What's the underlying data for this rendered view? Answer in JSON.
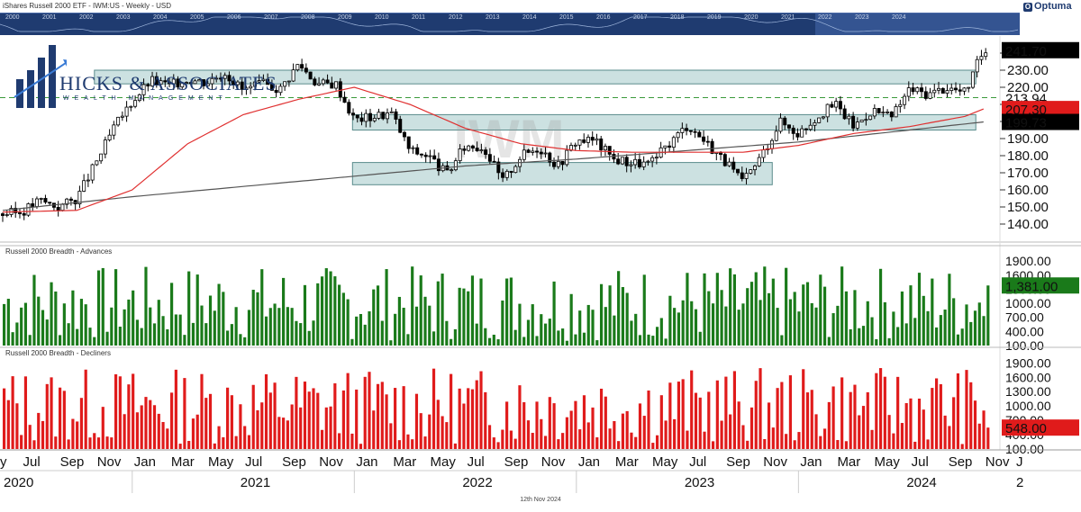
{
  "header": {
    "title": "iShares Russell 2000 ETF - IWM:US - Weekly - USD",
    "brand": "Optuma"
  },
  "navigator": {
    "years": [
      "2000",
      "2001",
      "2002",
      "2003",
      "2004",
      "2005",
      "2006",
      "2007",
      "2008",
      "2009",
      "2010",
      "2011",
      "2012",
      "2013",
      "2014",
      "2015",
      "2016",
      "2017",
      "2018",
      "2019",
      "2020",
      "2021",
      "2022",
      "2023",
      "2024"
    ]
  },
  "logo": {
    "name": "HICKS & ASSOCIATES",
    "tagline": "WEALTH MANAGEMENT"
  },
  "watermark": "IWM",
  "footer": {
    "date": "12th Nov 2024"
  },
  "colors": {
    "up": "#ffffff",
    "down": "#000000",
    "ma_fast": "#e03030",
    "ma_slow": "#555555",
    "zone": "#8fbcbc",
    "advances": "#1a7a1a",
    "decliners": "#e01b1b",
    "nav": "#1f3b70"
  },
  "chart_data": [
    {
      "type": "candlestick",
      "title": "iShares Russell 2000 ETF - IWM:US - Weekly - USD",
      "ylim": [
        130,
        250
      ],
      "yticks": [
        "140.00",
        "150.00",
        "160.00",
        "170.00",
        "180.00",
        "190.00",
        "200.00",
        "210.00",
        "220.00",
        "230.00",
        "240.00"
      ],
      "price_labels": [
        {
          "value": 241.7,
          "label": "241.70",
          "style": "last"
        },
        {
          "value": 213.94,
          "label": "213.94",
          "style": "level"
        },
        {
          "value": 207.3,
          "label": "207.30",
          "style": "ma_fast"
        },
        {
          "value": 199.73,
          "label": "199.73",
          "style": "ma_slow"
        }
      ],
      "dashed_level": 213.94,
      "zones": [
        {
          "from": "2021-01",
          "to": "2024-10",
          "low": 222,
          "high": 230
        },
        {
          "from": "2022-01",
          "to": "2024-10",
          "low": 195,
          "high": 204
        },
        {
          "from": "2022-01",
          "to": "2023-11",
          "low": 163,
          "high": 176
        }
      ],
      "monthly_close": [
        {
          "x": "2020-06",
          "v": 146
        },
        {
          "x": "2020-07",
          "v": 147
        },
        {
          "x": "2020-08",
          "v": 154
        },
        {
          "x": "2020-09",
          "v": 150
        },
        {
          "x": "2020-10",
          "v": 155
        },
        {
          "x": "2020-11",
          "v": 175
        },
        {
          "x": "2020-12",
          "v": 196
        },
        {
          "x": "2021-01",
          "v": 212
        },
        {
          "x": "2021-02",
          "v": 224
        },
        {
          "x": "2021-03",
          "v": 221
        },
        {
          "x": "2021-04",
          "v": 225
        },
        {
          "x": "2021-05",
          "v": 223
        },
        {
          "x": "2021-06",
          "v": 229
        },
        {
          "x": "2021-07",
          "v": 218
        },
        {
          "x": "2021-08",
          "v": 222
        },
        {
          "x": "2021-09",
          "v": 219
        },
        {
          "x": "2021-10",
          "v": 234
        },
        {
          "x": "2021-11",
          "v": 222
        },
        {
          "x": "2021-12",
          "v": 222
        },
        {
          "x": "2022-01",
          "v": 201
        },
        {
          "x": "2022-02",
          "v": 203
        },
        {
          "x": "2022-03",
          "v": 205
        },
        {
          "x": "2022-04",
          "v": 183
        },
        {
          "x": "2022-05",
          "v": 180
        },
        {
          "x": "2022-06",
          "v": 169
        },
        {
          "x": "2022-07",
          "v": 186
        },
        {
          "x": "2022-08",
          "v": 185
        },
        {
          "x": "2022-09",
          "v": 165
        },
        {
          "x": "2022-10",
          "v": 180
        },
        {
          "x": "2022-11",
          "v": 185
        },
        {
          "x": "2022-12",
          "v": 174
        },
        {
          "x": "2023-01",
          "v": 189
        },
        {
          "x": "2023-02",
          "v": 189
        },
        {
          "x": "2023-03",
          "v": 178
        },
        {
          "x": "2023-04",
          "v": 176
        },
        {
          "x": "2023-05",
          "v": 175
        },
        {
          "x": "2023-06",
          "v": 187
        },
        {
          "x": "2023-07",
          "v": 198
        },
        {
          "x": "2023-08",
          "v": 188
        },
        {
          "x": "2023-09",
          "v": 177
        },
        {
          "x": "2023-10",
          "v": 164
        },
        {
          "x": "2023-11",
          "v": 180
        },
        {
          "x": "2023-12",
          "v": 200
        },
        {
          "x": "2024-01",
          "v": 193
        },
        {
          "x": "2024-02",
          "v": 203
        },
        {
          "x": "2024-03",
          "v": 210
        },
        {
          "x": "2024-04",
          "v": 197
        },
        {
          "x": "2024-05",
          "v": 207
        },
        {
          "x": "2024-06",
          "v": 202
        },
        {
          "x": "2024-07",
          "v": 219
        },
        {
          "x": "2024-08",
          "v": 216
        },
        {
          "x": "2024-09",
          "v": 220
        },
        {
          "x": "2024-10",
          "v": 217
        },
        {
          "x": "2024-11",
          "v": 241.7
        }
      ],
      "ma_fast": [
        {
          "x": "2020-06",
          "v": 147
        },
        {
          "x": "2020-10",
          "v": 148
        },
        {
          "x": "2021-01",
          "v": 160
        },
        {
          "x": "2021-04",
          "v": 187
        },
        {
          "x": "2021-07",
          "v": 204
        },
        {
          "x": "2021-10",
          "v": 213
        },
        {
          "x": "2022-01",
          "v": 220
        },
        {
          "x": "2022-04",
          "v": 210
        },
        {
          "x": "2022-07",
          "v": 196
        },
        {
          "x": "2022-10",
          "v": 187
        },
        {
          "x": "2023-01",
          "v": 183
        },
        {
          "x": "2023-04",
          "v": 182
        },
        {
          "x": "2023-07",
          "v": 182
        },
        {
          "x": "2023-10",
          "v": 182
        },
        {
          "x": "2024-01",
          "v": 186
        },
        {
          "x": "2024-04",
          "v": 193
        },
        {
          "x": "2024-07",
          "v": 197
        },
        {
          "x": "2024-10",
          "v": 203
        },
        {
          "x": "2024-11",
          "v": 207.3
        }
      ],
      "ma_slow": [
        {
          "x": "2020-06",
          "v": 148
        },
        {
          "x": "2021-01",
          "v": 156
        },
        {
          "x": "2021-07",
          "v": 162
        },
        {
          "x": "2022-01",
          "v": 168
        },
        {
          "x": "2022-07",
          "v": 174
        },
        {
          "x": "2023-01",
          "v": 178
        },
        {
          "x": "2023-07",
          "v": 183
        },
        {
          "x": "2024-01",
          "v": 188
        },
        {
          "x": "2024-07",
          "v": 195
        },
        {
          "x": "2024-11",
          "v": 199.73
        }
      ]
    },
    {
      "type": "bar",
      "title": "Russell 2000 Breadth - Advances",
      "ylim": [
        100,
        2000
      ],
      "yticks": [
        "100.00",
        "400.00",
        "700.00",
        "1000.00",
        "1300.00",
        "1600.00",
        "1900.00"
      ],
      "last_label": "1,381.00",
      "last": 1381,
      "seed": 7,
      "count": 230
    },
    {
      "type": "bar",
      "title": "Russell 2000 Breadth - Decliners",
      "ylim": [
        100,
        2000
      ],
      "yticks": [
        "100.00",
        "400.00",
        "700.00",
        "1000.00",
        "1300.00",
        "1600.00",
        "1900.00"
      ],
      "last_label": "548.00",
      "last": 548,
      "seed": 13,
      "count": 230
    }
  ],
  "x_axis": {
    "months": [
      "Jul",
      "Sep",
      "Nov",
      "Jan",
      "Mar",
      "May",
      "Jul",
      "Sep",
      "Nov",
      "Jan",
      "Mar",
      "May",
      "Jul",
      "Sep",
      "Nov",
      "Jan",
      "Mar",
      "May",
      "Jul",
      "Sep",
      "Nov",
      "Jan",
      "Mar",
      "May",
      "Jul",
      "Sep",
      "Nov"
    ],
    "month_start": "2020-07",
    "years": [
      "2020",
      "2021",
      "2022",
      "2023",
      "2024"
    ],
    "edge": "2"
  }
}
